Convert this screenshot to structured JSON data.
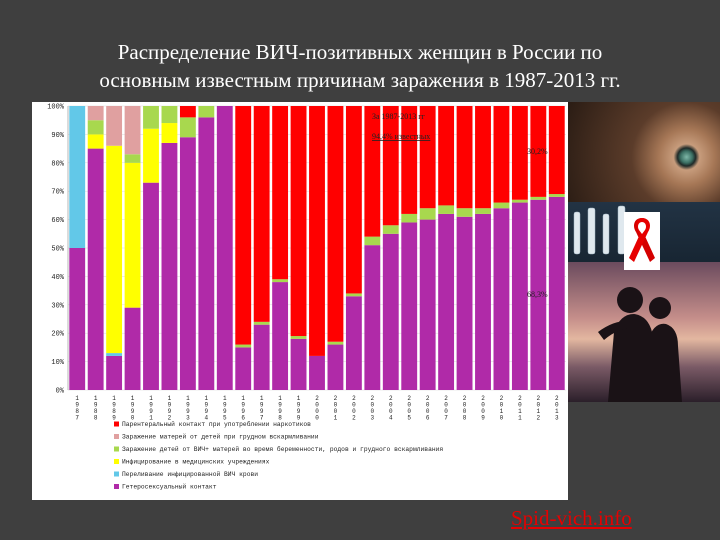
{
  "title": {
    "line1": "Распределение ВИЧ-позитивных женщин в России по",
    "line2": "основным известным причинам заражения в 1987-2013 гг."
  },
  "source_link": "Spid-vich.info",
  "colors": {
    "background": "#3f3f3f",
    "idu": "#ff0000",
    "mother_from_child": "#e0a0a0",
    "child_from_mother": "#a8d84e",
    "nosocomial": "#ffff00",
    "transfusion": "#62c8e8",
    "heterosexual": "#b02aa8"
  },
  "chart_data": {
    "type": "bar",
    "stacked": true,
    "ylim": [
      0,
      100
    ],
    "ytick_labels": [
      "0%",
      "10%",
      "20%",
      "30%",
      "40%",
      "50%",
      "60%",
      "70%",
      "80%",
      "90%",
      "100%"
    ],
    "categories": [
      "1987",
      "1988",
      "1989",
      "1990",
      "1991",
      "1992",
      "1993",
      "1994",
      "1995",
      "1996",
      "1997",
      "1998",
      "1999",
      "2000",
      "2001",
      "2002",
      "2003",
      "2004",
      "2005",
      "2006",
      "2007",
      "2008",
      "2009",
      "2010",
      "2011",
      "2012",
      "2013"
    ],
    "series": [
      {
        "key": "heterosexual",
        "name": "Гетеросексуальный контакт",
        "values": [
          50,
          85,
          12,
          29,
          73,
          87,
          89,
          96,
          100,
          15,
          23,
          38,
          18,
          12,
          16,
          33,
          51,
          55,
          59,
          60,
          62,
          61,
          62,
          64,
          66,
          67,
          68
        ]
      },
      {
        "key": "transfusion",
        "name": "Переливание инфицированной ВИЧ крови",
        "values": [
          50,
          0,
          1,
          0,
          0,
          0,
          0,
          0,
          0,
          0,
          0,
          0,
          0,
          0,
          0,
          0,
          0,
          0,
          0,
          0,
          0,
          0,
          0,
          0,
          0,
          0,
          0
        ]
      },
      {
        "key": "nosocomial",
        "name": "Инфицирование в медицинских учреждениях",
        "values": [
          0,
          5,
          73,
          51,
          19,
          7,
          0,
          0,
          0,
          0,
          0,
          0,
          0,
          0,
          0,
          0,
          0,
          0,
          0,
          0,
          0,
          0,
          0,
          0,
          0,
          0,
          0
        ]
      },
      {
        "key": "child_from_mother",
        "name": "Заражение детей от ВИЧ+ матерей во время беременности, родов и грудного вскармливания",
        "values": [
          0,
          5,
          0,
          3,
          8,
          6,
          7,
          4,
          0,
          1,
          1,
          1,
          1,
          0,
          1,
          1,
          3,
          3,
          3,
          4,
          3,
          3,
          2,
          2,
          1,
          1,
          1
        ]
      },
      {
        "key": "mother_from_child",
        "name": "Заражение матерей от детей при грудном вскармливании",
        "values": [
          0,
          5,
          14,
          17,
          0,
          0,
          0,
          0,
          0,
          0,
          0,
          0,
          0,
          0,
          0,
          0,
          0,
          0,
          0,
          0,
          0,
          0,
          0,
          0,
          0,
          0,
          0
        ]
      },
      {
        "key": "idu",
        "name": "Парентеральный контакт при употреблении наркотиков",
        "values": [
          0,
          0,
          0,
          0,
          0,
          0,
          4,
          0,
          0,
          84,
          76,
          61,
          81,
          88,
          83,
          66,
          46,
          42,
          38,
          36,
          35,
          36,
          36,
          34,
          33,
          32,
          31
        ]
      }
    ],
    "legend_order": [
      "idu",
      "mother_from_child",
      "child_from_mother",
      "nosocomial",
      "transfusion",
      "heterosexual"
    ],
    "annotations": {
      "period_line1": "За 1987-2013 гг",
      "period_line2": "94,4% известных",
      "idu_share": "30,2%",
      "hetero_share": "68,3%"
    }
  }
}
